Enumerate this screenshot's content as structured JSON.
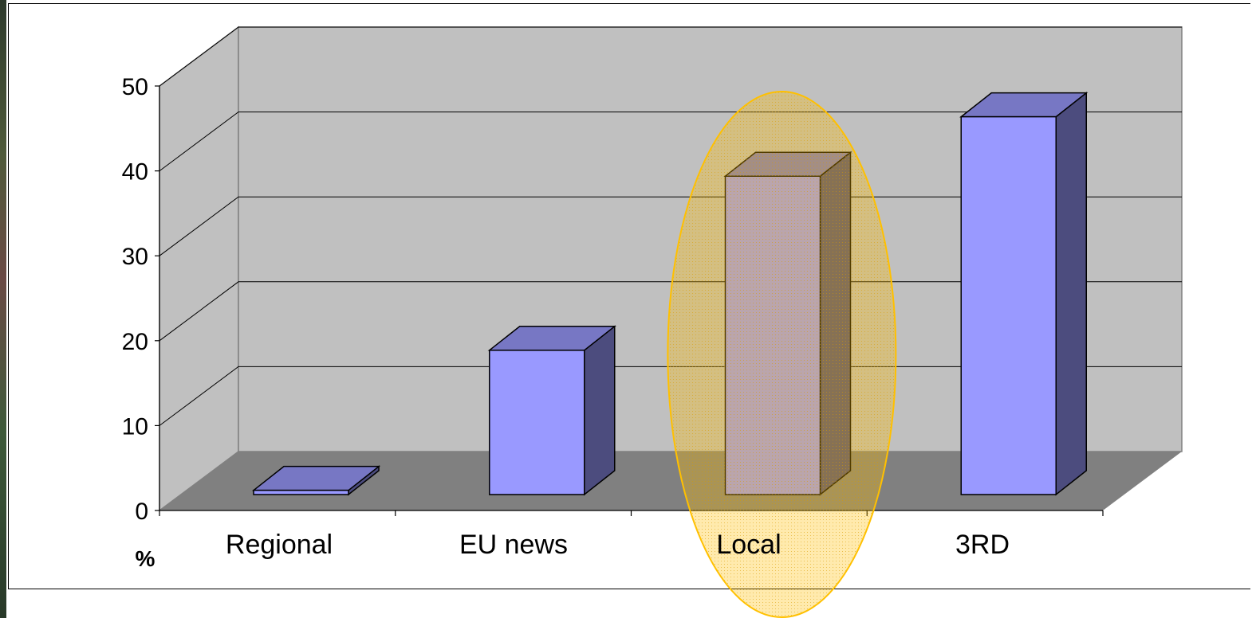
{
  "chart_data": {
    "type": "bar",
    "style": "3d-column",
    "categories": [
      "Regional",
      "EU news",
      "Local",
      "3RD"
    ],
    "values": [
      0.5,
      17,
      37.5,
      44.5
    ],
    "ylim": [
      0,
      50
    ],
    "yticks": [
      0,
      10,
      20,
      30,
      40,
      50
    ],
    "ylabel": "%",
    "grid": true,
    "highlight": {
      "category": "Local",
      "shape": "ellipse",
      "color": "#ffc000"
    },
    "colors": {
      "bar_front": "#9999ff",
      "bar_top": "#7777c4",
      "bar_side": "#4c4c7e",
      "wall": "#c0c0c0",
      "floor": "#808080"
    }
  }
}
